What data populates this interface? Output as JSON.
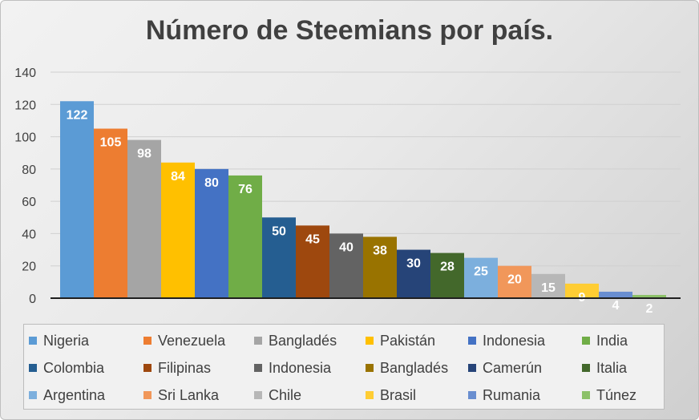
{
  "chart_data": {
    "type": "bar",
    "title": "Número de Steemians por país.",
    "xlabel": "",
    "ylabel": "",
    "ylim": [
      0,
      140
    ],
    "yticks": [
      0,
      20,
      40,
      60,
      80,
      100,
      120,
      140
    ],
    "grid": true,
    "legend_position": "bottom",
    "data_labels": true,
    "series": [
      {
        "name": "Nigeria",
        "value": 122,
        "color": "#5b9bd5"
      },
      {
        "name": "Venezuela",
        "value": 105,
        "color": "#ed7d31"
      },
      {
        "name": "Bangladés",
        "value": 98,
        "color": "#a5a5a5"
      },
      {
        "name": "Pakistán",
        "value": 84,
        "color": "#ffc000"
      },
      {
        "name": "Indonesia",
        "value": 80,
        "color": "#4472c4"
      },
      {
        "name": "India",
        "value": 76,
        "color": "#70ad47"
      },
      {
        "name": "Colombia",
        "value": 50,
        "color": "#255e91"
      },
      {
        "name": "Filipinas",
        "value": 45,
        "color": "#9e480e"
      },
      {
        "name": "Indonesia",
        "value": 40,
        "color": "#636363"
      },
      {
        "name": "Bangladés",
        "value": 38,
        "color": "#997300"
      },
      {
        "name": "Camerún",
        "value": 30,
        "color": "#264478"
      },
      {
        "name": "Italia",
        "value": 28,
        "color": "#43682b"
      },
      {
        "name": "Argentina",
        "value": 25,
        "color": "#7cafdd"
      },
      {
        "name": "Sri Lanka",
        "value": 20,
        "color": "#f1975a"
      },
      {
        "name": "Chile",
        "value": 15,
        "color": "#b7b7b7"
      },
      {
        "name": "Brasil",
        "value": 9,
        "color": "#ffcd33"
      },
      {
        "name": "Rumania",
        "value": 4,
        "color": "#698ed0"
      },
      {
        "name": "Túnez",
        "value": 2,
        "color": "#8cc168"
      }
    ]
  }
}
